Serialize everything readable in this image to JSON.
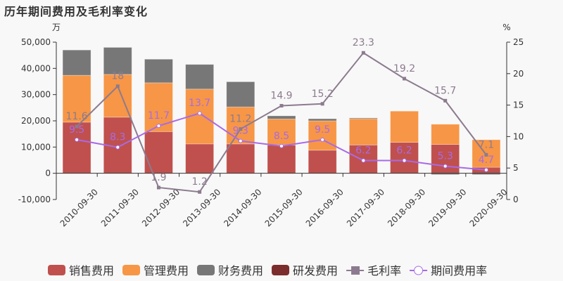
{
  "chart_data": {
    "type": "bar",
    "title": "历年期间费用及毛利率变化",
    "y_left_unit": "万",
    "y_right_unit": "%",
    "categories": [
      "2010-09-30",
      "2011-09-30",
      "2012-09-30",
      "2013-09-30",
      "2014-09-30",
      "2015-09-30",
      "2016-09-30",
      "2017-09-30",
      "2018-09-30",
      "2019-09-30",
      "2020-09-30"
    ],
    "ylim_left": [
      -10000,
      50000
    ],
    "yticks_left": [
      "-10,000",
      "0",
      "10,000",
      "20,000",
      "30,000",
      "40,000",
      "50,000"
    ],
    "ylim_right": [
      0,
      25
    ],
    "yticks_right": [
      "0",
      "5",
      "10",
      "15",
      "20",
      "25"
    ],
    "stacked": true,
    "series": [
      {
        "name": "销售费用",
        "type": "bar",
        "color": "#c0504d",
        "values": [
          19500,
          21400,
          15900,
          11200,
          11200,
          10800,
          8800,
          10800,
          11800,
          11000,
          2300
        ]
      },
      {
        "name": "管理费用",
        "type": "bar",
        "color": "#f79646",
        "values": [
          17850,
          16300,
          18600,
          20900,
          14100,
          9900,
          11200,
          10000,
          11900,
          7700,
          10500
        ]
      },
      {
        "name": "财务费用",
        "type": "bar",
        "color": "#777777",
        "values": [
          9650,
          10300,
          9000,
          9400,
          9600,
          1200,
          800,
          300,
          0,
          -500,
          -500
        ]
      },
      {
        "name": "研发费用",
        "type": "bar",
        "color": "#7b2c2c",
        "values": [
          0,
          0,
          0,
          0,
          0,
          0,
          0,
          0,
          0,
          0,
          0
        ]
      },
      {
        "name": "毛利率",
        "type": "line",
        "axis": "right",
        "color": "#8c7b8e",
        "marker": "square",
        "values": [
          11.6,
          18,
          1.9,
          1.2,
          11.2,
          14.9,
          15.2,
          23.3,
          19.2,
          15.7,
          7.1
        ],
        "labels": [
          "11.6",
          "18",
          "1.9",
          "1.2",
          "11.2",
          "14.9",
          "15.2",
          "23.3",
          "19.2",
          "15.7",
          "7.1"
        ]
      },
      {
        "name": "期间费用率",
        "type": "line",
        "axis": "right",
        "color": "#a86ae6",
        "marker": "circle",
        "values": [
          9.5,
          8.3,
          11.7,
          13.7,
          9.3,
          8.5,
          9.5,
          6.2,
          6.2,
          5.3,
          4.7
        ],
        "labels": [
          "9.5",
          "8.3",
          "11.7",
          "13.7",
          "9.3",
          "8.5",
          "9.5",
          "6.2",
          "6.2",
          "5.3",
          "4.7"
        ]
      }
    ],
    "legend": "bottom",
    "grid": false
  }
}
